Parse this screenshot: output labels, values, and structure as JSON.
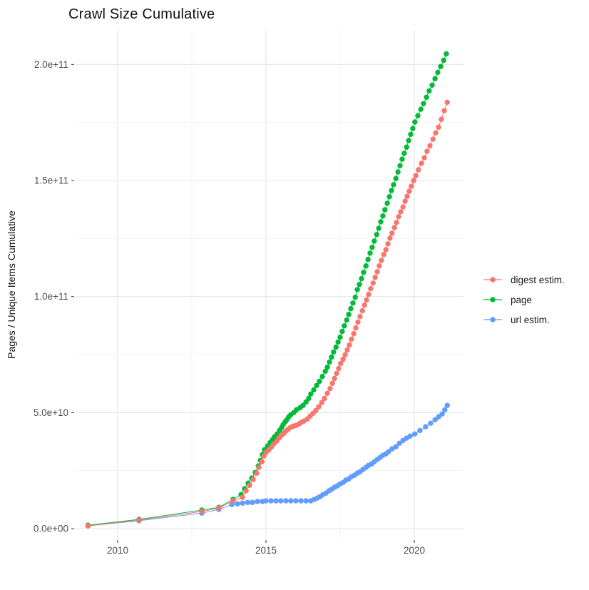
{
  "title": "Crawl Size Cumulative",
  "y_axis": {
    "title": "Pages / Unique Items Cumulative",
    "ticks": [
      {
        "label": "0.0e+00",
        "value": 0
      },
      {
        "label": "5.0e+10",
        "value": 50
      },
      {
        "label": "1.0e+11",
        "value": 100
      },
      {
        "label": "1.5e+11",
        "value": 150
      },
      {
        "label": "2.0e+11",
        "value": 200
      }
    ],
    "minor_values": [
      25,
      75,
      125,
      175
    ]
  },
  "x_axis": {
    "ticks": [
      {
        "label": "2010",
        "value": 2010
      },
      {
        "label": "2015",
        "value": 2015
      },
      {
        "label": "2020",
        "value": 2020
      }
    ],
    "minor_values": [
      2012.5,
      2017.5
    ]
  },
  "legend": {
    "items": [
      {
        "label": "digest estim.",
        "color": "#F8766D",
        "series": "digest estim."
      },
      {
        "label": "page",
        "color": "#00BA38",
        "series": "page"
      },
      {
        "label": "url estim.",
        "color": "#619CFF",
        "series": "url estim."
      }
    ]
  },
  "colors": {
    "grid_major": "#E4E4E4",
    "grid_minor": "#F3F3F3",
    "tick_text": "#4D4D4D",
    "tick_mark": "#333333"
  },
  "chart_data": {
    "type": "line",
    "title": "Crawl Size Cumulative",
    "xlabel": "",
    "ylabel": "Pages / Unique Items Cumulative",
    "x_unit": "year",
    "value_unit": "1e9 items",
    "xlim": [
      2008.6,
      2021.7
    ],
    "ylim": [
      0,
      215
    ],
    "grid": true,
    "legend_position": "right",
    "series": [
      {
        "name": "digest estim.",
        "color": "#F8766D",
        "points": [
          [
            2009.0,
            1.2
          ],
          [
            2010.72,
            3.7
          ],
          [
            2012.84,
            7.4
          ],
          [
            2013.41,
            8.9
          ],
          [
            2013.89,
            12.0
          ],
          [
            2014.21,
            13.5
          ],
          [
            2014.33,
            16.3
          ],
          [
            2014.45,
            18.7
          ],
          [
            2014.57,
            21.2
          ],
          [
            2014.69,
            23.9
          ],
          [
            2014.76,
            26.4
          ],
          [
            2014.86,
            28.8
          ],
          [
            2014.93,
            31.3
          ],
          [
            2015.0,
            32.8
          ],
          [
            2015.1,
            34.0
          ],
          [
            2015.19,
            35.3
          ],
          [
            2015.26,
            36.5
          ],
          [
            2015.36,
            37.7
          ],
          [
            2015.43,
            39.0
          ],
          [
            2015.5,
            39.9
          ],
          [
            2015.58,
            40.8
          ],
          [
            2015.65,
            41.7
          ],
          [
            2015.72,
            42.6
          ],
          [
            2015.79,
            43.3
          ],
          [
            2015.87,
            43.9
          ],
          [
            2015.94,
            44.2
          ],
          [
            2016.01,
            44.5
          ],
          [
            2016.11,
            45.1
          ],
          [
            2016.18,
            45.7
          ],
          [
            2016.27,
            46.3
          ],
          [
            2016.39,
            47.2
          ],
          [
            2016.49,
            48.5
          ],
          [
            2016.59,
            49.7
          ],
          [
            2016.68,
            50.9
          ],
          [
            2016.78,
            52.5
          ],
          [
            2016.88,
            54.3
          ],
          [
            2016.97,
            56.1
          ],
          [
            2017.07,
            58.3
          ],
          [
            2017.16,
            60.4
          ],
          [
            2017.24,
            62.6
          ],
          [
            2017.31,
            64.7
          ],
          [
            2017.38,
            66.9
          ],
          [
            2017.45,
            69.0
          ],
          [
            2017.52,
            71.2
          ],
          [
            2017.6,
            73.0
          ],
          [
            2017.67,
            74.9
          ],
          [
            2017.74,
            77.0
          ],
          [
            2017.81,
            79.1
          ],
          [
            2017.88,
            81.6
          ],
          [
            2017.96,
            84.0
          ],
          [
            2018.03,
            86.5
          ],
          [
            2018.1,
            89.0
          ],
          [
            2018.17,
            91.4
          ],
          [
            2018.25,
            93.9
          ],
          [
            2018.32,
            96.3
          ],
          [
            2018.39,
            98.5
          ],
          [
            2018.46,
            100.9
          ],
          [
            2018.53,
            103.4
          ],
          [
            2018.61,
            105.8
          ],
          [
            2018.68,
            108.3
          ],
          [
            2018.75,
            110.7
          ],
          [
            2018.82,
            113.2
          ],
          [
            2018.89,
            115.6
          ],
          [
            2018.97,
            118.1
          ],
          [
            2019.04,
            120.2
          ],
          [
            2019.11,
            122.7
          ],
          [
            2019.18,
            125.2
          ],
          [
            2019.25,
            127.3
          ],
          [
            2019.33,
            129.7
          ],
          [
            2019.4,
            131.9
          ],
          [
            2019.47,
            134.4
          ],
          [
            2019.54,
            136.5
          ],
          [
            2019.62,
            138.6
          ],
          [
            2019.69,
            141.1
          ],
          [
            2019.76,
            143.2
          ],
          [
            2019.83,
            145.4
          ],
          [
            2019.9,
            147.5
          ],
          [
            2019.98,
            150.0
          ],
          [
            2020.05,
            152.1
          ],
          [
            2020.14,
            154.6
          ],
          [
            2020.24,
            157.4
          ],
          [
            2020.34,
            159.8
          ],
          [
            2020.43,
            162.6
          ],
          [
            2020.53,
            165.0
          ],
          [
            2020.63,
            167.8
          ],
          [
            2020.72,
            170.5
          ],
          [
            2020.82,
            173.0
          ],
          [
            2020.91,
            176.4
          ],
          [
            2021.01,
            180.1
          ],
          [
            2021.11,
            183.7
          ]
        ]
      },
      {
        "name": "page",
        "color": "#00BA38",
        "points": [
          [
            2009.0,
            1.5
          ],
          [
            2010.72,
            4.0
          ],
          [
            2012.84,
            8.0
          ],
          [
            2013.41,
            9.2
          ],
          [
            2013.89,
            12.6
          ],
          [
            2014.16,
            14.7
          ],
          [
            2014.28,
            17.2
          ],
          [
            2014.4,
            19.6
          ],
          [
            2014.52,
            21.8
          ],
          [
            2014.64,
            24.2
          ],
          [
            2014.74,
            27.0
          ],
          [
            2014.81,
            29.4
          ],
          [
            2014.88,
            31.9
          ],
          [
            2014.95,
            34.0
          ],
          [
            2015.05,
            35.6
          ],
          [
            2015.14,
            37.1
          ],
          [
            2015.22,
            38.3
          ],
          [
            2015.29,
            39.6
          ],
          [
            2015.38,
            40.8
          ],
          [
            2015.46,
            42.3
          ],
          [
            2015.53,
            43.6
          ],
          [
            2015.58,
            44.8
          ],
          [
            2015.65,
            46.0
          ],
          [
            2015.7,
            46.9
          ],
          [
            2015.77,
            48.2
          ],
          [
            2015.84,
            49.1
          ],
          [
            2015.94,
            50.0
          ],
          [
            2016.03,
            51.2
          ],
          [
            2016.15,
            52.1
          ],
          [
            2016.25,
            53.1
          ],
          [
            2016.35,
            54.6
          ],
          [
            2016.44,
            56.1
          ],
          [
            2016.51,
            58.0
          ],
          [
            2016.61,
            59.8
          ],
          [
            2016.71,
            61.7
          ],
          [
            2016.8,
            63.5
          ],
          [
            2016.9,
            65.6
          ],
          [
            2017.0,
            67.8
          ],
          [
            2017.07,
            69.6
          ],
          [
            2017.14,
            71.8
          ],
          [
            2017.21,
            73.9
          ],
          [
            2017.28,
            76.1
          ],
          [
            2017.36,
            78.2
          ],
          [
            2017.43,
            80.4
          ],
          [
            2017.5,
            82.5
          ],
          [
            2017.57,
            85.0
          ],
          [
            2017.64,
            87.4
          ],
          [
            2017.72,
            89.9
          ],
          [
            2017.79,
            92.3
          ],
          [
            2017.86,
            94.8
          ],
          [
            2017.93,
            97.2
          ],
          [
            2018.01,
            99.7
          ],
          [
            2018.08,
            103.0
          ],
          [
            2018.15,
            105.2
          ],
          [
            2018.22,
            107.7
          ],
          [
            2018.29,
            110.4
          ],
          [
            2018.37,
            113.2
          ],
          [
            2018.44,
            116.0
          ],
          [
            2018.51,
            118.7
          ],
          [
            2018.58,
            121.2
          ],
          [
            2018.65,
            123.9
          ],
          [
            2018.73,
            126.7
          ],
          [
            2018.8,
            129.4
          ],
          [
            2018.87,
            132.2
          ],
          [
            2018.94,
            134.7
          ],
          [
            2019.01,
            137.4
          ],
          [
            2019.09,
            140.2
          ],
          [
            2019.16,
            143.0
          ],
          [
            2019.23,
            145.7
          ],
          [
            2019.3,
            148.2
          ],
          [
            2019.38,
            150.9
          ],
          [
            2019.45,
            153.7
          ],
          [
            2019.52,
            156.4
          ],
          [
            2019.59,
            159.2
          ],
          [
            2019.66,
            161.7
          ],
          [
            2019.74,
            164.4
          ],
          [
            2019.81,
            167.2
          ],
          [
            2019.88,
            169.9
          ],
          [
            2019.95,
            172.4
          ],
          [
            2020.02,
            175.2
          ],
          [
            2020.12,
            177.9
          ],
          [
            2020.22,
            180.7
          ],
          [
            2020.31,
            183.1
          ],
          [
            2020.41,
            185.9
          ],
          [
            2020.5,
            188.6
          ],
          [
            2020.6,
            191.1
          ],
          [
            2020.7,
            193.9
          ],
          [
            2020.79,
            196.6
          ],
          [
            2020.89,
            199.1
          ],
          [
            2020.99,
            201.8
          ],
          [
            2021.08,
            204.6
          ]
        ]
      },
      {
        "name": "url estim.",
        "color": "#619CFF",
        "points": [
          [
            2009.0,
            1.2
          ],
          [
            2010.72,
            3.4
          ],
          [
            2012.84,
            6.7
          ],
          [
            2013.41,
            8.3
          ],
          [
            2013.85,
            10.4
          ],
          [
            2014.04,
            10.7
          ],
          [
            2014.21,
            11.0
          ],
          [
            2014.38,
            11.3
          ],
          [
            2014.54,
            11.3
          ],
          [
            2014.71,
            11.7
          ],
          [
            2014.88,
            11.7
          ],
          [
            2015.0,
            12.0
          ],
          [
            2015.17,
            12.0
          ],
          [
            2015.34,
            12.0
          ],
          [
            2015.5,
            12.0
          ],
          [
            2015.67,
            12.0
          ],
          [
            2015.84,
            12.0
          ],
          [
            2016.01,
            12.0
          ],
          [
            2016.18,
            12.0
          ],
          [
            2016.35,
            12.0
          ],
          [
            2016.51,
            12.0
          ],
          [
            2016.63,
            12.6
          ],
          [
            2016.73,
            13.2
          ],
          [
            2016.83,
            13.8
          ],
          [
            2016.92,
            14.7
          ],
          [
            2017.02,
            15.3
          ],
          [
            2017.12,
            16.3
          ],
          [
            2017.21,
            16.9
          ],
          [
            2017.31,
            17.8
          ],
          [
            2017.4,
            18.4
          ],
          [
            2017.5,
            19.3
          ],
          [
            2017.6,
            19.9
          ],
          [
            2017.69,
            20.9
          ],
          [
            2017.79,
            21.5
          ],
          [
            2017.88,
            22.4
          ],
          [
            2017.98,
            23.0
          ],
          [
            2018.08,
            23.9
          ],
          [
            2018.17,
            24.5
          ],
          [
            2018.27,
            25.5
          ],
          [
            2018.37,
            26.4
          ],
          [
            2018.46,
            27.3
          ],
          [
            2018.56,
            27.9
          ],
          [
            2018.65,
            28.8
          ],
          [
            2018.75,
            29.8
          ],
          [
            2018.85,
            30.7
          ],
          [
            2018.94,
            31.6
          ],
          [
            2019.04,
            32.2
          ],
          [
            2019.13,
            33.1
          ],
          [
            2019.25,
            34.4
          ],
          [
            2019.38,
            35.3
          ],
          [
            2019.5,
            36.8
          ],
          [
            2019.62,
            38.0
          ],
          [
            2019.74,
            39.0
          ],
          [
            2019.86,
            39.9
          ],
          [
            2020.02,
            40.8
          ],
          [
            2020.19,
            42.3
          ],
          [
            2020.38,
            43.9
          ],
          [
            2020.55,
            45.4
          ],
          [
            2020.7,
            46.9
          ],
          [
            2020.82,
            48.2
          ],
          [
            2020.94,
            49.4
          ],
          [
            2021.03,
            51.2
          ],
          [
            2021.11,
            53.1
          ]
        ]
      }
    ]
  }
}
